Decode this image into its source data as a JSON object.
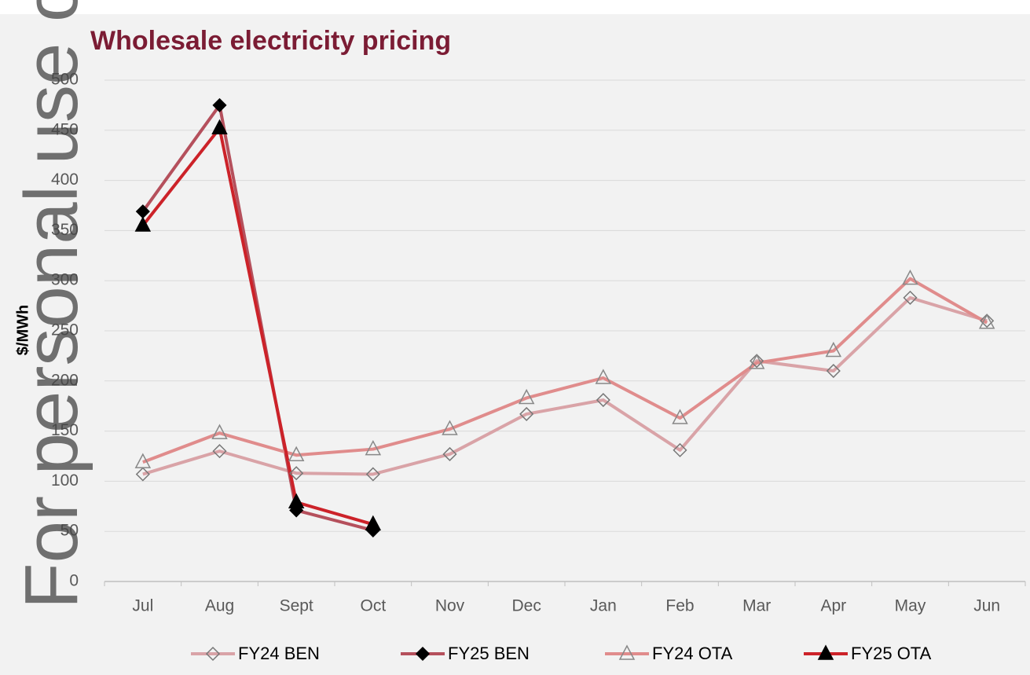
{
  "chart_data": {
    "type": "line",
    "title": "Wholesale electricity pricing",
    "ylabel": "$/MWh",
    "watermark": "For personal use only",
    "categories": [
      "Jul",
      "Aug",
      "Sept",
      "Oct",
      "Nov",
      "Dec",
      "Jan",
      "Feb",
      "Mar",
      "Apr",
      "May",
      "Jun"
    ],
    "series": [
      {
        "name": "FY24 BEN",
        "color": "#d9a3a7",
        "marker": "diamond",
        "marker_fill": "none",
        "marker_stroke": "#777777",
        "values": [
          107,
          130,
          108,
          107,
          127,
          167,
          181,
          131,
          220,
          210,
          283,
          260
        ]
      },
      {
        "name": "FY25 BEN",
        "color": "#b5505c",
        "marker": "diamond",
        "marker_fill": "#000000",
        "marker_stroke": "#000000",
        "values": [
          369,
          475,
          71,
          51,
          null,
          null,
          null,
          null,
          null,
          null,
          null,
          null
        ]
      },
      {
        "name": "FY24 OTA",
        "color": "#e08c8c",
        "marker": "triangle",
        "marker_fill": "none",
        "marker_stroke": "#888888",
        "values": [
          119,
          148,
          126,
          132,
          152,
          183,
          203,
          163,
          218,
          230,
          302,
          258
        ]
      },
      {
        "name": "FY25 OTA",
        "color": "#cc2229",
        "marker": "triangle",
        "marker_fill": "#000000",
        "marker_stroke": "#000000",
        "values": [
          355,
          452,
          79,
          57,
          null,
          null,
          null,
          null,
          null,
          null,
          null,
          null
        ]
      }
    ],
    "ylim": [
      0,
      500
    ],
    "yticks": [
      0,
      50,
      100,
      150,
      200,
      250,
      300,
      350,
      400,
      450,
      500
    ],
    "grid": true,
    "legend": "bottom"
  }
}
